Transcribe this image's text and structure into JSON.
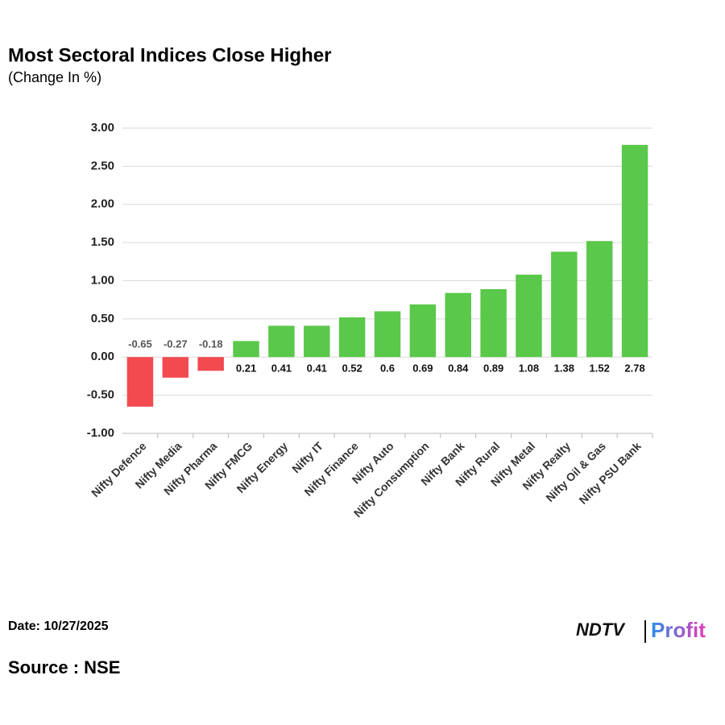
{
  "chart_data": {
    "type": "bar",
    "title": "Most Sectoral Indices Close Higher",
    "subtitle": "(Change In %)",
    "categories": [
      "Nifty Defence",
      "Nifty Media",
      "Nifty Pharma",
      "Nifty FMCG",
      "Nifty Energy",
      "Nifty IT",
      "Nifty Finance",
      "Nifty Auto",
      "Nifty Consumption",
      "Nifty Bank",
      "Nifty Rural",
      "Nifty Metal",
      "Nifty Realty",
      "Nifty Oil & Gas",
      "Nifty PSU Bank"
    ],
    "values": [
      -0.65,
      -0.27,
      -0.18,
      0.21,
      0.41,
      0.41,
      0.52,
      0.6,
      0.69,
      0.84,
      0.89,
      1.08,
      1.38,
      1.52,
      2.78
    ],
    "positive_color": "#5ac84a",
    "negative_color": "#f24a4f",
    "ylim": [
      -1,
      3
    ],
    "yticks": [
      {
        "value": -1,
        "label": "-1.00"
      },
      {
        "value": -0.5,
        "label": "-0.50"
      },
      {
        "value": 0,
        "label": "0.00"
      },
      {
        "value": 0.5,
        "label": "0.50"
      },
      {
        "value": 1,
        "label": "1.00"
      },
      {
        "value": 1.5,
        "label": "1.50"
      },
      {
        "value": 2,
        "label": "2.00"
      },
      {
        "value": 2.5,
        "label": "2.50"
      },
      {
        "value": 3,
        "label": "3.00"
      }
    ],
    "grid": true
  },
  "footer": {
    "date": "Date: 10/27/2025",
    "source": "Source : NSE"
  },
  "logo": {
    "brand": "NDTV",
    "product": "Profit"
  }
}
